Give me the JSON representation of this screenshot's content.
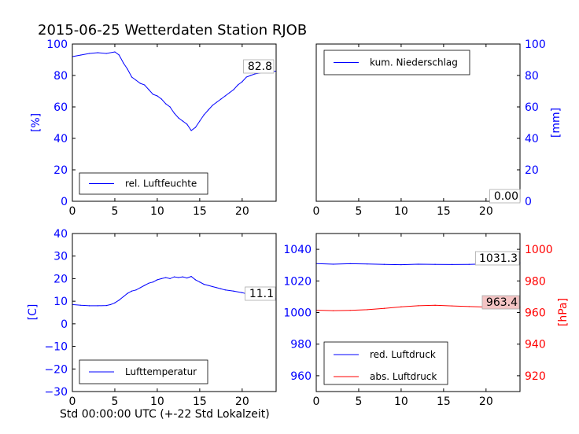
{
  "title": "2015-06-25 Wetterdaten Station RJOB",
  "xlabel": "Std 00:00:00 UTC (+-22 Std Lokalzeit)",
  "colors": {
    "blue": "#0000ff",
    "red": "#ff0000",
    "black": "#000000"
  },
  "chart_data": [
    {
      "type": "line",
      "ylabel": "[%]",
      "xlim": [
        0,
        24
      ],
      "ylim": [
        0,
        100
      ],
      "xticks": [
        "0",
        "5",
        "10",
        "15",
        "20"
      ],
      "yticks": [
        "0",
        "20",
        "40",
        "60",
        "80",
        "100"
      ],
      "legend": {
        "placement": "lower-left",
        "entries": [
          "rel. Luftfeuchte"
        ]
      },
      "last_value_label": "82.8",
      "series": [
        {
          "name": "rel. Luftfeuchte",
          "color": "#0000ff",
          "x": [
            0,
            1,
            2,
            3,
            4,
            5,
            5.5,
            6,
            6.5,
            7,
            7.5,
            8,
            8.5,
            9,
            9.5,
            10,
            10.5,
            11,
            11.5,
            12,
            12.5,
            13,
            13.5,
            14,
            14.5,
            15,
            15.5,
            16,
            16.5,
            17,
            17.5,
            18,
            18.5,
            19,
            19.5,
            20,
            20.5,
            21,
            21.5,
            22,
            22.5,
            23,
            23.5,
            24
          ],
          "values": [
            92,
            93,
            94,
            94.5,
            94,
            95,
            93,
            88,
            84,
            79,
            77,
            75,
            74,
            71,
            68,
            67,
            65,
            62,
            60,
            56,
            53,
            51,
            49,
            45,
            47,
            51,
            55,
            58,
            61,
            63,
            65,
            67,
            69,
            71,
            74,
            76,
            79,
            80,
            81,
            81.5,
            82,
            82,
            82.5,
            82.8
          ]
        }
      ]
    },
    {
      "type": "line",
      "ylabel": "[mm]",
      "xlim": [
        0,
        24
      ],
      "ylim": [
        0,
        100
      ],
      "xticks": [
        "0",
        "5",
        "10",
        "15",
        "20"
      ],
      "yticks": [
        "0",
        "20",
        "40",
        "60",
        "80",
        "100"
      ],
      "legend": {
        "placement": "top-left",
        "entries": [
          "kum. Niederschlag"
        ]
      },
      "last_value_label": "0.00",
      "series": [
        {
          "name": "kum. Niederschlag",
          "color": "#0000ff",
          "x": [
            0,
            24
          ],
          "values": [
            0,
            0
          ]
        }
      ]
    },
    {
      "type": "line",
      "ylabel": "[C]",
      "xlim": [
        0,
        24
      ],
      "ylim": [
        -30,
        40
      ],
      "xticks": [
        "0",
        "5",
        "10",
        "15",
        "20"
      ],
      "yticks": [
        "−30",
        "−20",
        "−10",
        "0",
        "10",
        "20",
        "30",
        "40"
      ],
      "legend": {
        "placement": "lower-left",
        "entries": [
          "Lufttemperatur"
        ]
      },
      "last_value_label": "11.1",
      "series": [
        {
          "name": "Lufttemperatur",
          "color": "#0000ff",
          "x": [
            0,
            1,
            2,
            3,
            4,
            4.5,
            5,
            5.5,
            6,
            6.5,
            7,
            7.5,
            8,
            8.5,
            9,
            9.5,
            10,
            10.5,
            11,
            11.5,
            12,
            12.5,
            13,
            13.5,
            14,
            14.5,
            15,
            15.5,
            16,
            16.5,
            17,
            17.5,
            18,
            19,
            20,
            21,
            22,
            23,
            24
          ],
          "values": [
            8.5,
            8.2,
            8.0,
            8.0,
            8.1,
            8.5,
            9.3,
            10.5,
            12,
            13.5,
            14.5,
            15,
            16,
            17,
            18,
            18.5,
            19.5,
            20,
            20.5,
            20,
            20.8,
            20.5,
            20.8,
            20.3,
            21,
            19.5,
            18.5,
            17.5,
            17,
            16.5,
            16,
            15.5,
            15,
            14.5,
            13.8,
            12.8,
            12,
            11.5,
            11.1
          ]
        }
      ]
    },
    {
      "type": "line",
      "ylabel": "[hPa]",
      "xlim": [
        0,
        24
      ],
      "ylim": [
        950,
        1050
      ],
      "ylim_right": [
        910,
        1010
      ],
      "xticks": [
        "0",
        "5",
        "10",
        "15",
        "20"
      ],
      "yticks": [
        "960",
        "980",
        "1000",
        "1020",
        "1040"
      ],
      "yticks_right": [
        "920",
        "940",
        "960",
        "980",
        "1000"
      ],
      "legend": {
        "placement": "lower-left",
        "entries": [
          "red. Luftdruck",
          "abs. Luftdruck"
        ]
      },
      "last_value_label_red": "1031.3",
      "last_value_label_abs": "963.4",
      "series": [
        {
          "name": "red. Luftdruck",
          "color": "#0000ff",
          "axis": "left",
          "x": [
            0,
            2,
            4,
            6,
            8,
            10,
            12,
            14,
            16,
            18,
            20,
            22,
            24
          ],
          "values": [
            1031,
            1030.6,
            1030.9,
            1030.7,
            1030.5,
            1030.3,
            1030.6,
            1030.5,
            1030.4,
            1030.5,
            1030.8,
            1031,
            1031.3
          ]
        },
        {
          "name": "abs. Luftdruck",
          "color": "#ff0000",
          "axis": "right",
          "x": [
            0,
            2,
            4,
            6,
            8,
            10,
            12,
            14,
            16,
            18,
            20,
            22,
            24
          ],
          "values": [
            961.5,
            961.2,
            961.4,
            961.8,
            962.6,
            963.6,
            964.3,
            964.6,
            964.2,
            963.8,
            963.5,
            963.3,
            963.4
          ]
        }
      ]
    }
  ]
}
